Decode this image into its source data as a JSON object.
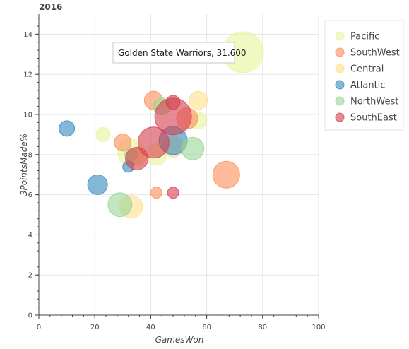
{
  "chart_data": {
    "type": "scatter",
    "title": "2016",
    "xlabel": "GamesWon",
    "ylabel": "3PointsMade%",
    "xlim": [
      0,
      100
    ],
    "ylim": [
      0,
      15
    ],
    "xticks": [
      0,
      20,
      40,
      60,
      80,
      100
    ],
    "yticks": [
      0,
      2,
      4,
      6,
      8,
      10,
      12,
      14
    ],
    "grid": true,
    "legend_position": "top-right",
    "size_encoding": "bubble area",
    "tooltip": {
      "text": "Golden State Warriors, 31.600",
      "anchor_series": "Pacific"
    },
    "series": [
      {
        "name": "Pacific",
        "color": "#e6f598",
        "points": [
          {
            "x": 73,
            "y": 13.1,
            "r": 29
          },
          {
            "x": 57,
            "y": 9.7,
            "r": 12
          },
          {
            "x": 42,
            "y": 8.0,
            "r": 15
          },
          {
            "x": 33,
            "y": 8.1,
            "r": 19
          },
          {
            "x": 23,
            "y": 9.0,
            "r": 10
          }
        ]
      },
      {
        "name": "SouthWest",
        "color": "#fc8d59",
        "points": [
          {
            "x": 67,
            "y": 7.0,
            "r": 19
          },
          {
            "x": 53,
            "y": 9.8,
            "r": 15
          },
          {
            "x": 41,
            "y": 10.7,
            "r": 13
          },
          {
            "x": 30,
            "y": 8.6,
            "r": 12
          },
          {
            "x": 42,
            "y": 6.1,
            "r": 8
          }
        ]
      },
      {
        "name": "Central",
        "color": "#fee08b",
        "points": [
          {
            "x": 57,
            "y": 10.7,
            "r": 13
          },
          {
            "x": 48,
            "y": 8.4,
            "r": 15
          },
          {
            "x": 35,
            "y": 7.9,
            "r": 13
          },
          {
            "x": 33,
            "y": 5.4,
            "r": 16
          },
          {
            "x": 44,
            "y": 10.5,
            "r": 8
          }
        ]
      },
      {
        "name": "Atlantic",
        "color": "#3288bd",
        "points": [
          {
            "x": 48,
            "y": 8.7,
            "r": 20
          },
          {
            "x": 10,
            "y": 9.3,
            "r": 11
          },
          {
            "x": 21,
            "y": 6.5,
            "r": 14
          },
          {
            "x": 32,
            "y": 7.4,
            "r": 8
          }
        ]
      },
      {
        "name": "NorthWest",
        "color": "#99d594",
        "points": [
          {
            "x": 55,
            "y": 8.3,
            "r": 16
          },
          {
            "x": 29,
            "y": 5.5,
            "r": 17
          },
          {
            "x": 44,
            "y": 10.4,
            "r": 12
          },
          {
            "x": 33,
            "y": 8.0,
            "r": 9
          }
        ]
      },
      {
        "name": "SouthEast",
        "color": "#d53e4f",
        "points": [
          {
            "x": 48,
            "y": 9.9,
            "r": 26
          },
          {
            "x": 41,
            "y": 8.6,
            "r": 22
          },
          {
            "x": 35,
            "y": 7.8,
            "r": 16
          },
          {
            "x": 48,
            "y": 10.6,
            "r": 10
          },
          {
            "x": 48,
            "y": 6.1,
            "r": 8
          }
        ]
      }
    ]
  }
}
